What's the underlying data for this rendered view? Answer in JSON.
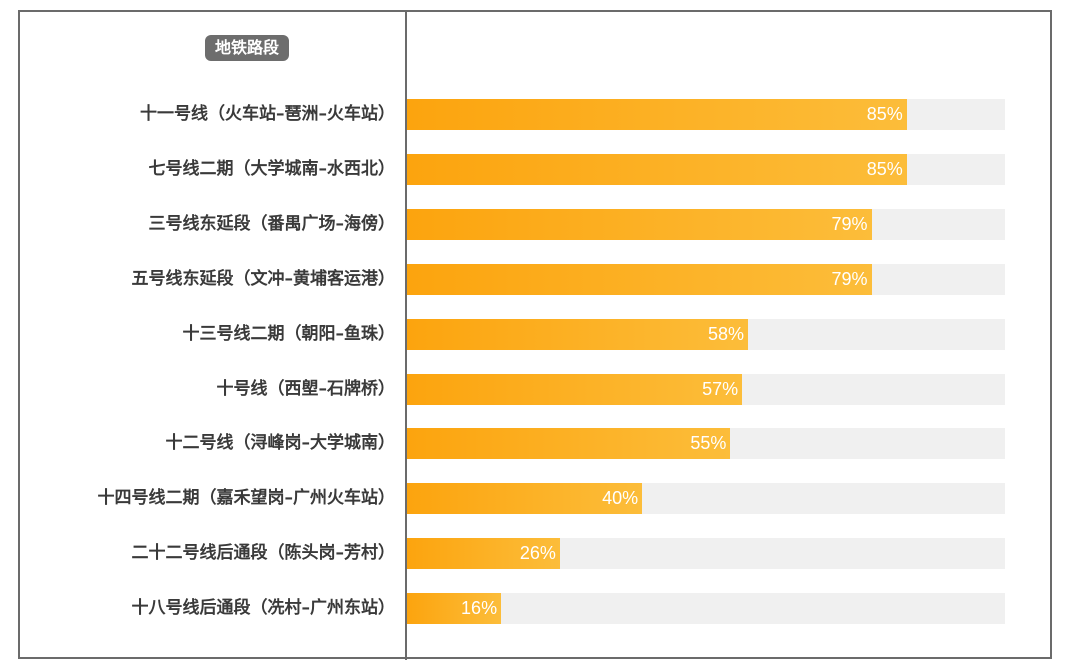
{
  "chart_data": {
    "type": "bar",
    "orientation": "horizontal",
    "header": "地铁路段",
    "categories": [
      "十一号线（火车站–琶洲–火车站）",
      "七号线二期（大学城南–水西北）",
      "三号线东延段（番禺广场–海傍）",
      "五号线东延段（文冲–黄埔客运港）",
      "十三号线二期（朝阳–鱼珠）",
      "十号线（西塱–石牌桥）",
      "十二号线（浔峰岗–大学城南）",
      "十四号线二期（嘉禾望岗–广州火车站）",
      "二十二号线后通段（陈头岗–芳村）",
      "十八号线后通段（冼村–广州东站）"
    ],
    "values": [
      85,
      85,
      79,
      79,
      58,
      57,
      55,
      40,
      26,
      16
    ],
    "labels": [
      "85%",
      "85%",
      "79%",
      "79%",
      "58%",
      "57%",
      "55%",
      "40%",
      "26%",
      "16%"
    ],
    "xlim": [
      0,
      100
    ],
    "colors": {
      "bar": "#fca40e",
      "track": "#f0f0f0"
    }
  }
}
